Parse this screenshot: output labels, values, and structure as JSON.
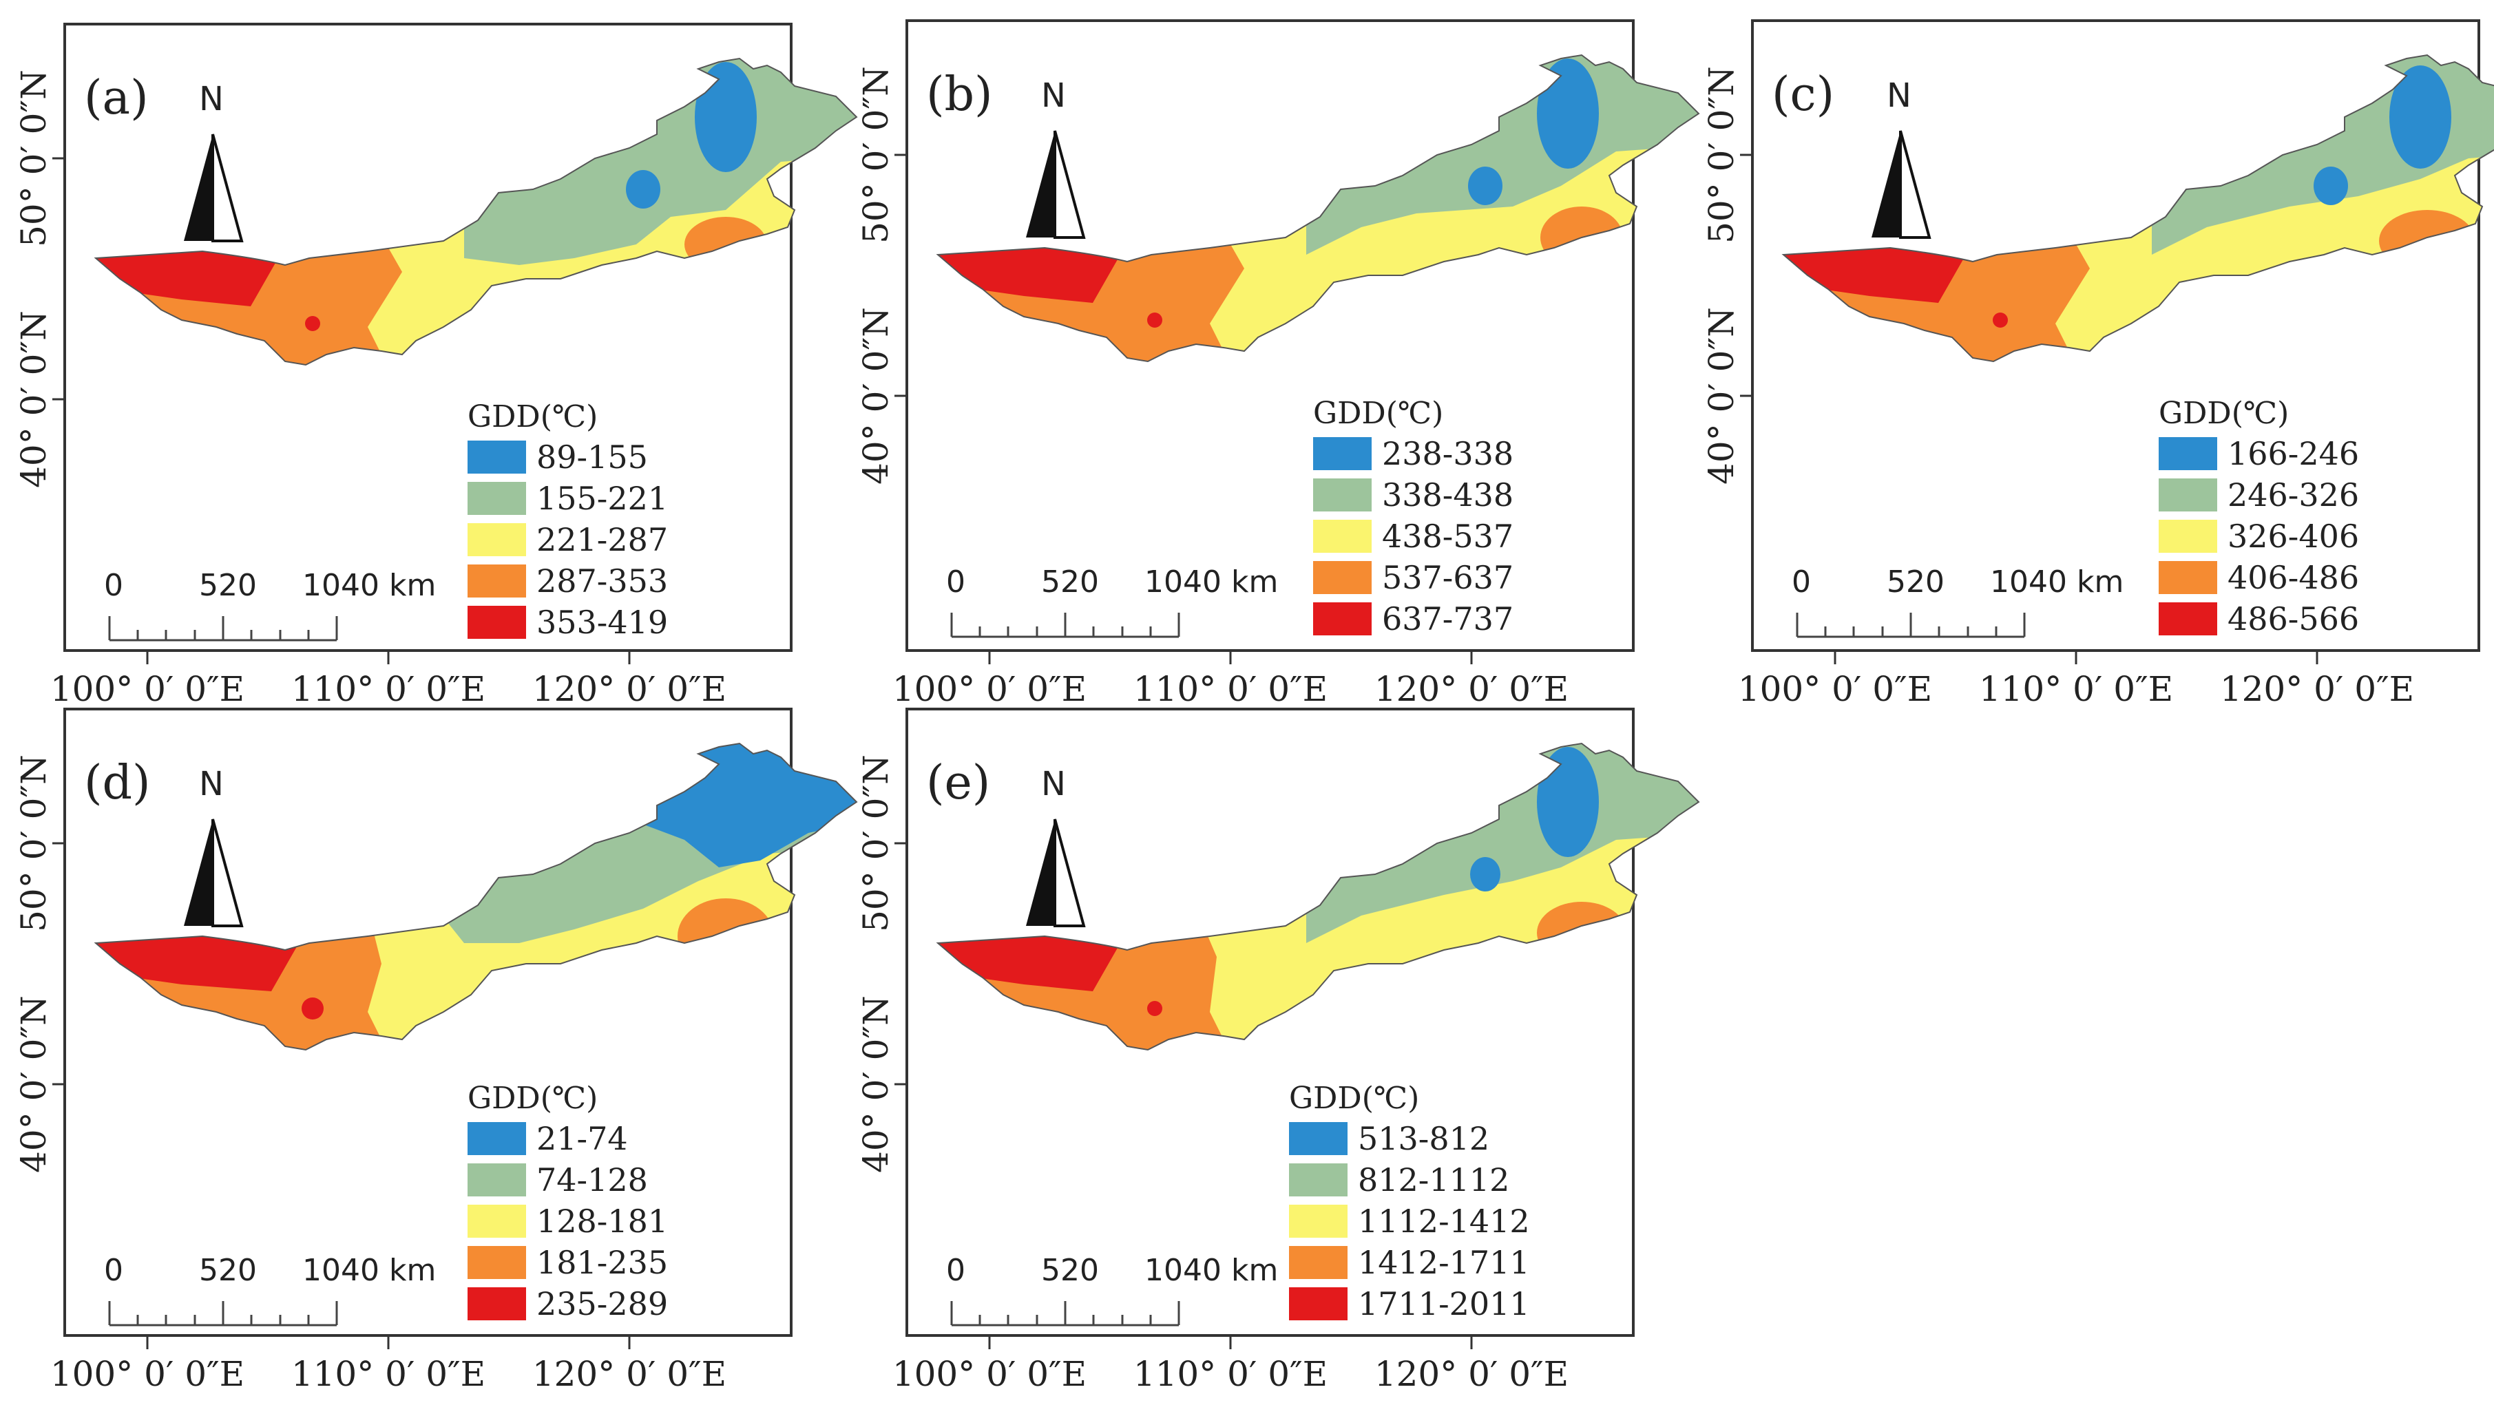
{
  "figure": {
    "lon_ticks": [
      "100° 0′ 0″E",
      "110° 0′ 0″E",
      "120° 0′ 0″E"
    ],
    "lat_ticks": [
      "50° 0′ 0″N",
      "40° 0′ 0″N"
    ],
    "north_label": "N",
    "scale_labels": [
      "0",
      "520",
      "1040 km"
    ],
    "legend_title": "GDD(℃)",
    "class_colors": [
      "#2b8ccf",
      "#9dc49c",
      "#faf46e",
      "#f58b32",
      "#e31a1c"
    ],
    "panels": [
      {
        "id": "a",
        "label": "(a)",
        "classes": [
          "89-155",
          "155-221",
          "221-287",
          "287-353",
          "353-419"
        ]
      },
      {
        "id": "b",
        "label": "(b)",
        "classes": [
          "238-338",
          "338-438",
          "438-537",
          "537-637",
          "637-737"
        ]
      },
      {
        "id": "c",
        "label": "(c)",
        "classes": [
          "166-246",
          "246-326",
          "326-406",
          "406-486",
          "486-566"
        ]
      },
      {
        "id": "d",
        "label": "(d)",
        "classes": [
          "21-74",
          "74-128",
          "128-181",
          "181-235",
          "235-289"
        ]
      },
      {
        "id": "e",
        "label": "(e)",
        "classes": [
          "513-812",
          "812-1112",
          "1112-1412",
          "1412-1711",
          "1711-2011"
        ]
      }
    ]
  }
}
